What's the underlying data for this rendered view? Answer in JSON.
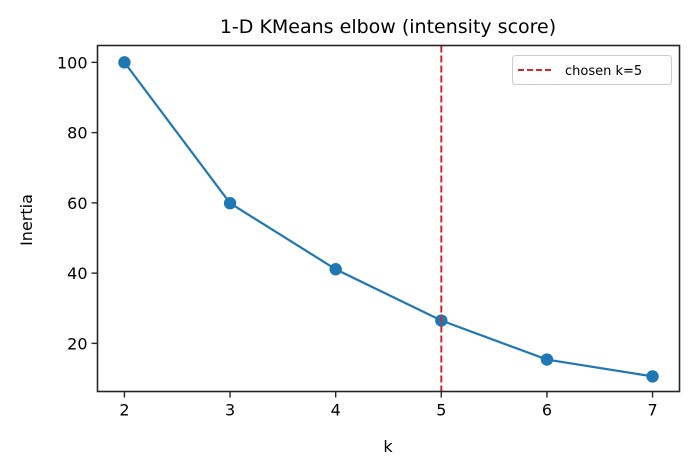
{
  "chart_data": {
    "type": "line",
    "title": "1-D KMeans elbow (intensity score)",
    "xlabel": "k",
    "ylabel": "Inertia",
    "x": [
      2,
      3,
      4,
      5,
      6,
      7
    ],
    "series": [
      {
        "name": "inertia",
        "values": [
          100.0,
          59.9,
          41.1,
          26.5,
          15.4,
          10.6
        ],
        "color": "#1f77b4",
        "marker": "circle"
      }
    ],
    "xticks": [
      2,
      3,
      4,
      5,
      6,
      7
    ],
    "yticks": [
      20,
      40,
      60,
      80,
      100
    ],
    "xlim": [
      1.745,
      7.255
    ],
    "ylim": [
      6.3,
      104.8
    ],
    "grid": false,
    "annotations": [
      {
        "type": "vline",
        "x": 5,
        "style": "dashed",
        "color": "#d62728",
        "label": "chosen k=5"
      }
    ],
    "legend": {
      "position": "upper right",
      "entries": [
        "chosen k=5"
      ]
    }
  }
}
